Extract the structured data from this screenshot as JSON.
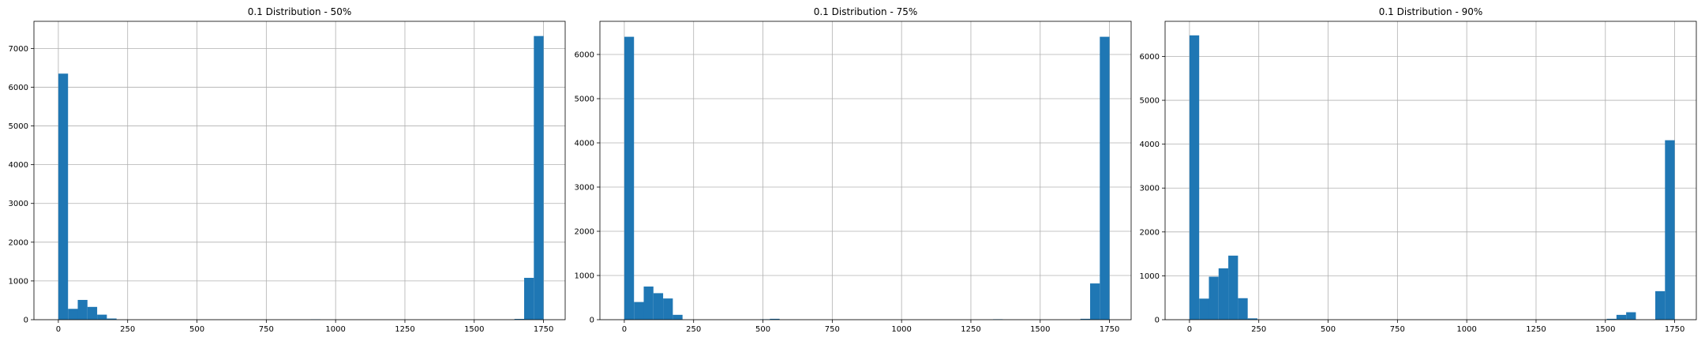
{
  "chart_data": [
    {
      "type": "bar",
      "title": "0.1 Distribution - 50%",
      "xlim": [
        -88,
        1828
      ],
      "ylim": [
        0,
        7700
      ],
      "xticks": [
        0,
        250,
        500,
        750,
        1000,
        1250,
        1500,
        1750
      ],
      "yticks": [
        0,
        1000,
        2000,
        3000,
        4000,
        5000,
        6000,
        7000
      ],
      "grid": true,
      "bin_width": 35,
      "bars": [
        {
          "x": 0,
          "y": 6350
        },
        {
          "x": 35,
          "y": 280
        },
        {
          "x": 70,
          "y": 510
        },
        {
          "x": 105,
          "y": 330
        },
        {
          "x": 140,
          "y": 130
        },
        {
          "x": 175,
          "y": 30
        },
        {
          "x": 910,
          "y": 10
        },
        {
          "x": 1645,
          "y": 20
        },
        {
          "x": 1680,
          "y": 1080
        },
        {
          "x": 1715,
          "y": 7320
        }
      ]
    },
    {
      "type": "bar",
      "title": "0.1 Distribution - 75%",
      "xlim": [
        -88,
        1828
      ],
      "ylim": [
        0,
        6750
      ],
      "xticks": [
        0,
        250,
        500,
        750,
        1000,
        1250,
        1500,
        1750
      ],
      "yticks": [
        0,
        1000,
        2000,
        3000,
        4000,
        5000,
        6000
      ],
      "grid": true,
      "bin_width": 35,
      "bars": [
        {
          "x": 0,
          "y": 6400
        },
        {
          "x": 35,
          "y": 400
        },
        {
          "x": 70,
          "y": 750
        },
        {
          "x": 105,
          "y": 600
        },
        {
          "x": 140,
          "y": 480
        },
        {
          "x": 175,
          "y": 110
        },
        {
          "x": 490,
          "y": 10
        },
        {
          "x": 525,
          "y": 20
        },
        {
          "x": 1330,
          "y": 10
        },
        {
          "x": 1645,
          "y": 20
        },
        {
          "x": 1680,
          "y": 820
        },
        {
          "x": 1715,
          "y": 6400
        }
      ]
    },
    {
      "type": "bar",
      "title": "0.1 Distribution - 90%",
      "xlim": [
        -88,
        1828
      ],
      "ylim": [
        0,
        6800
      ],
      "xticks": [
        0,
        250,
        500,
        750,
        1000,
        1250,
        1500,
        1750
      ],
      "yticks": [
        0,
        1000,
        2000,
        3000,
        4000,
        5000,
        6000
      ],
      "grid": true,
      "bin_width": 35,
      "bars": [
        {
          "x": 0,
          "y": 6480
        },
        {
          "x": 35,
          "y": 480
        },
        {
          "x": 70,
          "y": 980
        },
        {
          "x": 105,
          "y": 1170
        },
        {
          "x": 140,
          "y": 1460
        },
        {
          "x": 175,
          "y": 490
        },
        {
          "x": 210,
          "y": 30
        },
        {
          "x": 1505,
          "y": 20
        },
        {
          "x": 1540,
          "y": 110
        },
        {
          "x": 1575,
          "y": 170
        },
        {
          "x": 1680,
          "y": 650
        },
        {
          "x": 1715,
          "y": 4090
        }
      ]
    }
  ],
  "colors": {
    "bar": "#1f77b4",
    "grid": "#b0b0b0",
    "axis": "#000000",
    "background": "#ffffff"
  }
}
